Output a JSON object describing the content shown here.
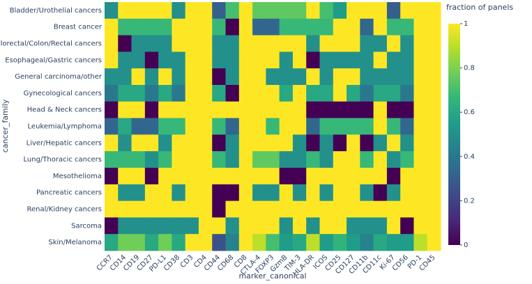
{
  "chart_data": {
    "type": "heatmap",
    "xlabel": "marker_canonical",
    "ylabel": "cancer_family",
    "colorbar_title": "fraction of panels",
    "x": [
      "CCR7",
      "CD14",
      "CD19",
      "CD27",
      "PD-L1",
      "CD38",
      "CD3",
      "CD4",
      "CD44",
      "CD68",
      "CD8",
      "CTLA-4",
      "FOXP3",
      "GzmB",
      "TIM-3",
      "HLA-DR",
      "ICOS",
      "CD25",
      "CD127",
      "CD11b",
      "CD11c",
      "Ki-67",
      "CD56",
      "PD-1",
      "CD45"
    ],
    "y": [
      "Bladder/Urothelial cancers",
      "Breast cancer",
      "Colorectal/Colon/Rectal cancers",
      "Esophageal/Gastric cancers",
      "General carcinoma/other",
      "Gynecological cancers",
      "Head & Neck cancers",
      "Leukemia/Lymphoma",
      "Liver/Hepatic cancers",
      "Lung/Thoracic cancers",
      "Mesothelioma",
      "Pancreatic cancers",
      "Renal/Kidney cancers",
      "Sarcoma",
      "Skin/Melanoma"
    ],
    "z": [
      [
        0.5,
        1,
        1,
        1,
        1,
        0.5,
        1,
        1,
        0.3,
        0.7,
        1,
        0.75,
        0.75,
        0.75,
        0.75,
        1,
        0.7,
        0.55,
        1,
        1,
        1,
        0.3,
        1,
        1,
        1
      ],
      [
        1,
        0.67,
        0.67,
        0.67,
        0.67,
        1,
        1,
        1,
        0.67,
        0,
        1,
        0.33,
        0.33,
        0.67,
        0.67,
        0.67,
        0.67,
        1,
        1,
        0.33,
        1,
        0.67,
        0.67,
        1,
        1
      ],
      [
        1,
        0,
        0.5,
        0.5,
        0.5,
        1,
        1,
        1,
        0.5,
        0.5,
        1,
        1,
        1,
        1,
        1,
        0.5,
        1,
        1,
        1,
        0.5,
        0.5,
        1,
        0.5,
        1,
        1
      ],
      [
        1,
        0.5,
        0.5,
        0,
        0.5,
        0.5,
        1,
        1,
        0.5,
        0.5,
        1,
        1,
        1,
        0.5,
        1,
        0,
        0.5,
        0.5,
        0.5,
        0.5,
        1,
        0.5,
        0.5,
        1,
        1
      ],
      [
        0.5,
        0.5,
        1,
        0.5,
        1,
        0.5,
        1,
        1,
        0,
        0.5,
        1,
        1,
        0.5,
        0.5,
        0.5,
        1,
        0.5,
        1,
        1,
        0.5,
        0.5,
        0.5,
        0.5,
        1,
        1
      ],
      [
        0.4,
        0.6,
        0.6,
        0.4,
        0.6,
        0.4,
        1,
        1,
        0.6,
        0,
        1,
        1,
        1,
        0.6,
        1,
        0.6,
        0.6,
        1,
        0.6,
        0.4,
        0.6,
        0.6,
        0.4,
        1,
        1
      ],
      [
        0,
        1,
        1,
        0,
        1,
        1,
        1,
        1,
        1,
        1,
        1,
        1,
        1,
        1,
        1,
        0,
        0,
        0,
        0,
        0,
        1,
        0,
        0,
        1,
        1
      ],
      [
        0.33,
        0.6,
        0.33,
        0.33,
        0.67,
        0.67,
        1,
        1,
        0.67,
        0.33,
        1,
        1,
        0.67,
        1,
        1,
        0.33,
        0.67,
        0.67,
        0.67,
        0.67,
        1,
        0.67,
        0.33,
        1,
        1
      ],
      [
        1,
        0.5,
        1,
        1,
        0.5,
        1,
        1,
        1,
        0,
        0.5,
        1,
        1,
        1,
        1,
        0.5,
        0,
        0.5,
        0,
        1,
        0,
        0.5,
        1,
        0.5,
        1,
        1
      ],
      [
        0.67,
        0.67,
        0.67,
        0.5,
        0.67,
        1,
        1,
        1,
        0.67,
        0.5,
        1,
        0.75,
        0.75,
        0.5,
        0.5,
        0.67,
        0.5,
        1,
        1,
        0.67,
        1,
        0.5,
        0.67,
        1,
        1
      ],
      [
        0,
        1,
        1,
        0,
        1,
        1,
        1,
        1,
        1,
        1,
        1,
        1,
        1,
        0,
        0,
        1,
        1,
        1,
        1,
        1,
        1,
        0,
        1,
        1,
        1
      ],
      [
        1,
        0.5,
        0.5,
        1,
        1,
        0.5,
        1,
        1,
        0,
        0,
        1,
        0.5,
        0.5,
        1,
        0.5,
        1,
        0.5,
        1,
        1,
        0.5,
        0,
        0.5,
        1,
        1,
        1
      ],
      [
        1,
        1,
        1,
        1,
        1,
        1,
        1,
        1,
        0,
        1,
        1,
        1,
        1,
        1,
        1,
        1,
        1,
        1,
        1,
        1,
        1,
        1,
        1,
        1,
        1
      ],
      [
        0,
        0.5,
        0.5,
        0.5,
        0.5,
        0.5,
        0.5,
        1,
        1,
        0.5,
        1,
        1,
        1,
        0.5,
        1,
        0.5,
        1,
        1,
        0.5,
        0.5,
        0.5,
        1,
        0,
        1,
        1
      ],
      [
        0.6,
        0.78,
        0.78,
        0.6,
        0.78,
        0.6,
        1,
        1,
        0.25,
        0.45,
        1,
        0.9,
        0.7,
        0.55,
        0.6,
        0.9,
        0.55,
        0.65,
        0.55,
        0.45,
        0.6,
        0.55,
        0.55,
        0.9,
        1
      ]
    ],
    "zlim": [
      0,
      1
    ],
    "zticks": [
      0,
      0.2,
      0.4,
      0.6,
      0.8,
      1
    ],
    "colorscale": [
      "#440154",
      "#482878",
      "#3e4989",
      "#31688e",
      "#26828e",
      "#1f9e89",
      "#35b779",
      "#6ece58",
      "#b5de2b",
      "#fde725"
    ]
  }
}
